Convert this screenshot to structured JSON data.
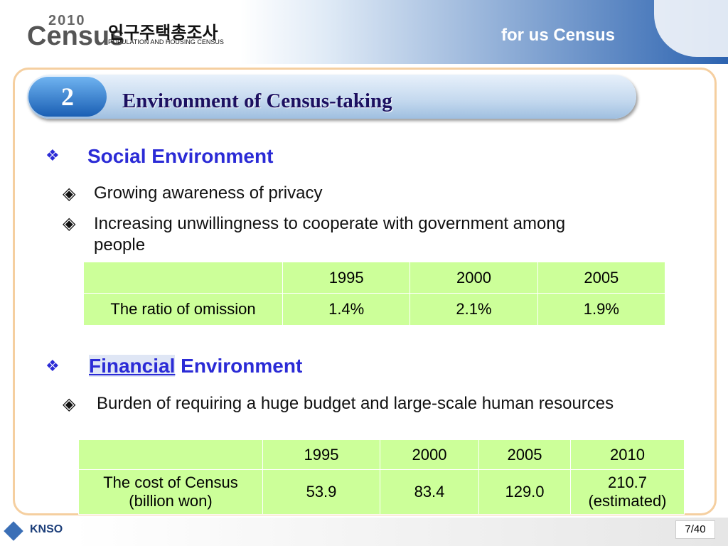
{
  "header": {
    "year": "2010",
    "logo": "Census",
    "korean": "인구주택총조사",
    "subtitle": "POPULATION AND HOUSING CENSUS",
    "slogan": "for us Census"
  },
  "section": {
    "number": "2",
    "title": "Environment of Census-taking"
  },
  "social": {
    "heading": "Social Environment",
    "bullets": [
      "Growing awareness of privacy",
      "Increasing unwillingness to cooperate with government among people"
    ],
    "table": {
      "header": [
        "1995",
        "2000",
        "2005"
      ],
      "row_label": "The ratio of omission",
      "values": [
        "1.4%",
        "2.1%",
        "1.9%"
      ]
    }
  },
  "financial": {
    "heading_highlight": "Financial",
    "heading_rest": "Environment",
    "bullets": [
      "Burden of requiring a huge budget and large-scale human resources"
    ],
    "table": {
      "header": [
        "1995",
        "2000",
        "2005",
        "2010"
      ],
      "row_label": [
        "The cost of Census",
        "(billion won)"
      ],
      "values": [
        "53.9",
        "83.4",
        "129.0",
        "210.7"
      ],
      "note": "(estimated)"
    }
  },
  "footer": {
    "org": "KNSO",
    "page": "7/40"
  }
}
